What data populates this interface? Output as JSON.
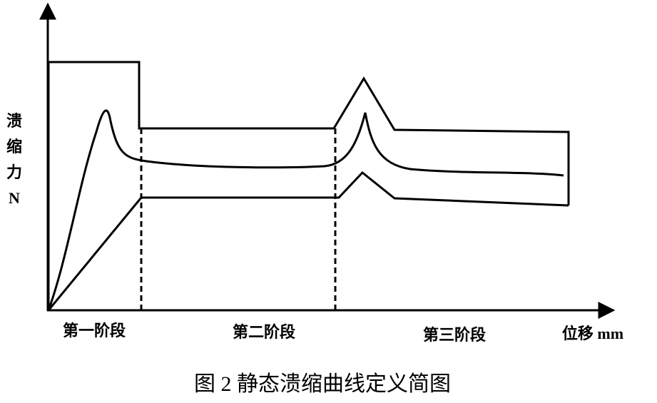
{
  "y_axis": {
    "label_lines": [
      "溃",
      "缩",
      "力",
      "N"
    ]
  },
  "stages": [
    "第一阶段",
    "第二阶段",
    "第三阶段"
  ],
  "x_axis": {
    "label": "位移 mm"
  },
  "caption": "图 2 静态溃缩曲线定义简图"
}
